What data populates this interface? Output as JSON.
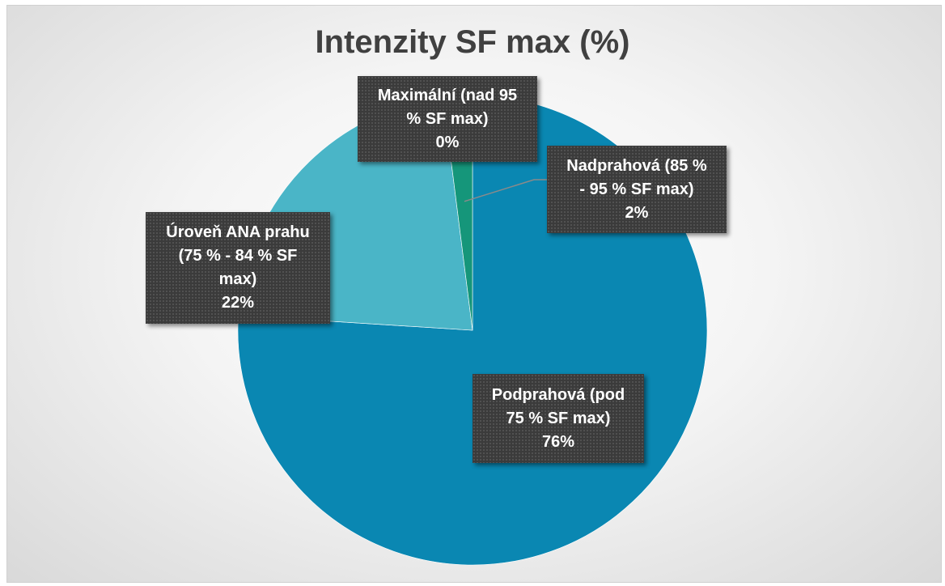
{
  "chart_data": {
    "type": "pie",
    "title": "Intenzity SF max (%)",
    "slices": [
      {
        "label_lines": [
          "Podprahová (pod",
          "75 % SF max)"
        ],
        "value": 76,
        "value_label": "76%",
        "color": "#0A87B2"
      },
      {
        "label_lines": [
          "Úroveň ANA prahu",
          "(75 % - 84 % SF",
          "max)"
        ],
        "value": 22,
        "value_label": "22%",
        "color": "#4AB5C7"
      },
      {
        "label_lines": [
          "Maximální (nad 95",
          "% SF max)"
        ],
        "value": 0,
        "value_label": "0%",
        "color": "#1FA2A8"
      },
      {
        "label_lines": [
          "Nadprahová (85 %",
          "- 95 % SF max)"
        ],
        "value": 2,
        "value_label": "2%",
        "color": "#15967A"
      }
    ]
  }
}
